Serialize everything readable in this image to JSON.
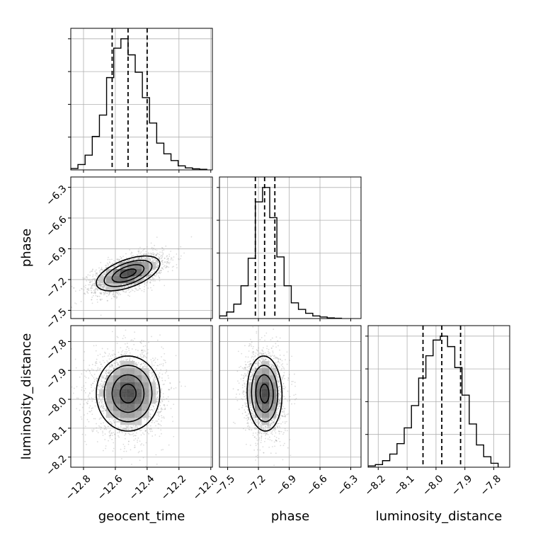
{
  "chart_data": {
    "type": "corner",
    "grid": true,
    "parameters": [
      "geocent_time",
      "phase",
      "luminosity_distance"
    ],
    "axis_labels": {
      "x": [
        "geocent_time",
        "phase",
        "luminosity_distance"
      ],
      "y": [
        "phase",
        "luminosity_distance"
      ]
    },
    "ranges": {
      "geocent_time": [
        -12.88,
        -11.99
      ],
      "phase": [
        -7.58,
        -6.2
      ],
      "luminosity_distance": [
        -8.235,
        -7.745
      ]
    },
    "ticks": {
      "geocent_time": [
        -12.8,
        -12.6,
        -12.4,
        -12.2,
        -12.0
      ],
      "phase": [
        -7.5,
        -7.2,
        -6.9,
        -6.6,
        -6.3
      ],
      "luminosity_distance": [
        -8.2,
        -8.1,
        -8.0,
        -7.9,
        -7.8
      ]
    },
    "tick_labels": {
      "geocent_time": [
        "−12.8",
        "−12.6",
        "−12.4",
        "−12.2",
        "−12.0"
      ],
      "phase": [
        "−7.5",
        "−7.2",
        "−6.9",
        "−6.6",
        "−6.3"
      ],
      "luminosity_distance": [
        "−8.2",
        "−8.1",
        "−8.0",
        "−7.9",
        "−7.8"
      ]
    },
    "quantiles": {
      "geocent_time": [
        -12.62,
        -12.52,
        -12.4
      ],
      "phase": [
        -7.23,
        -7.14,
        -7.04
      ],
      "luminosity_distance": [
        -8.045,
        -7.98,
        -7.915
      ]
    },
    "histograms": {
      "geocent_time": {
        "bin_edges": [
          -12.88,
          -12.835,
          -12.79,
          -12.745,
          -12.7,
          -12.655,
          -12.61,
          -12.565,
          -12.52,
          -12.475,
          -12.43,
          -12.385,
          -12.34,
          -12.295,
          -12.25,
          -12.205,
          -12.16,
          -12.115,
          -12.07,
          -12.025
        ],
        "counts": [
          0.01,
          0.04,
          0.11,
          0.25,
          0.41,
          0.69,
          0.91,
          0.98,
          0.86,
          0.73,
          0.54,
          0.35,
          0.2,
          0.12,
          0.07,
          0.03,
          0.015,
          0.008,
          0.004
        ]
      },
      "phase": {
        "bin_edges": [
          -7.58,
          -7.51,
          -7.44,
          -7.37,
          -7.3,
          -7.23,
          -7.16,
          -7.09,
          -7.02,
          -6.95,
          -6.88,
          -6.81,
          -6.74,
          -6.67,
          -6.6,
          -6.53,
          -6.46,
          -6.39
        ],
        "counts": [
          0.02,
          0.05,
          0.11,
          0.25,
          0.46,
          0.89,
          1.0,
          0.77,
          0.47,
          0.25,
          0.12,
          0.07,
          0.04,
          0.02,
          0.012,
          0.005,
          0.002
        ]
      },
      "luminosity_distance": {
        "bin_edges": [
          -8.235,
          -8.21,
          -8.185,
          -8.16,
          -8.135,
          -8.11,
          -8.085,
          -8.06,
          -8.035,
          -8.01,
          -7.985,
          -7.96,
          -7.935,
          -7.91,
          -7.885,
          -7.86,
          -7.835,
          -7.81,
          -7.785
        ],
        "counts": [
          0.01,
          0.02,
          0.05,
          0.1,
          0.18,
          0.3,
          0.47,
          0.68,
          0.85,
          0.97,
          1.0,
          0.92,
          0.76,
          0.55,
          0.33,
          0.17,
          0.08,
          0.03
        ]
      }
    },
    "joint_panels": [
      {
        "x": "geocent_time",
        "y": "phase",
        "center": [
          -12.52,
          -7.14
        ],
        "sigma": [
          0.1,
          0.085
        ],
        "correlation": 0.55,
        "contour_levels_sigma": [
          0.5,
          1.0,
          1.5,
          2.0
        ]
      },
      {
        "x": "geocent_time",
        "y": "luminosity_distance",
        "center": [
          -12.52,
          -7.98
        ],
        "sigma": [
          0.1,
          0.065
        ],
        "correlation": 0.0,
        "contour_levels_sigma": [
          0.5,
          1.0,
          1.5,
          2.0
        ]
      },
      {
        "x": "phase",
        "y": "luminosity_distance",
        "center": [
          -7.14,
          -7.98
        ],
        "sigma": [
          0.085,
          0.065
        ],
        "correlation": -0.05,
        "contour_levels_sigma": [
          0.5,
          1.0,
          1.5,
          2.0
        ]
      }
    ],
    "colors": {
      "lines": "#000000",
      "grid": "#b0b0b0",
      "scatter": "#9a9a9a"
    }
  }
}
